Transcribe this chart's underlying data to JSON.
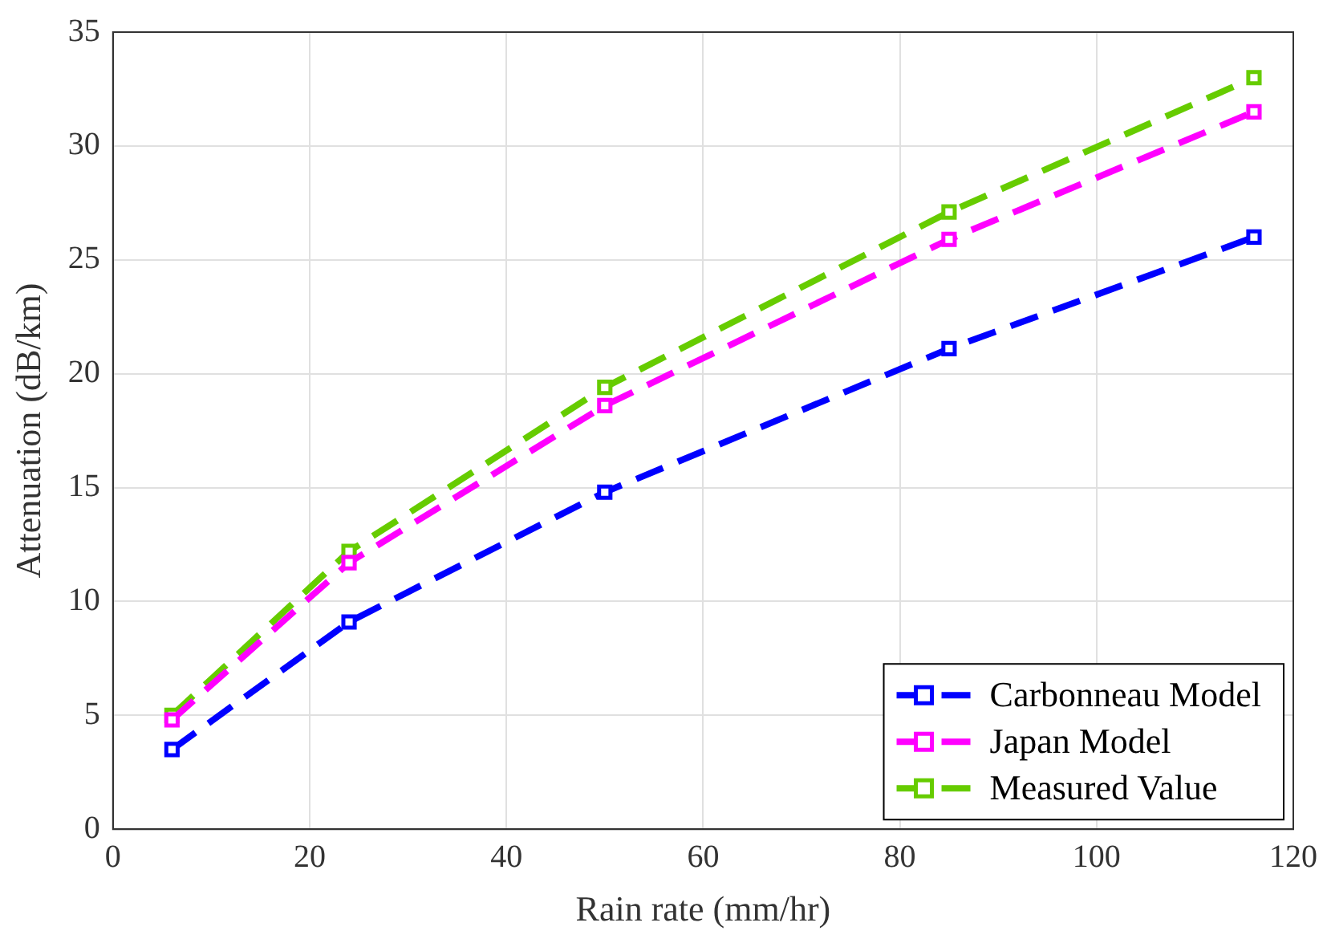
{
  "chart_data": {
    "type": "line",
    "xlabel": "Rain rate (mm/hr)",
    "ylabel": "Attenuation (dB/km)",
    "x": [
      6,
      24,
      50,
      85,
      116
    ],
    "series": [
      {
        "name": "Carbonneau Model",
        "color": "#0000ff",
        "values": [
          3.5,
          9.1,
          14.8,
          21.1,
          26.0
        ]
      },
      {
        "name": "Japan Model",
        "color": "#ff00ff",
        "values": [
          4.8,
          11.7,
          18.6,
          25.9,
          31.5
        ]
      },
      {
        "name": "Measured Value",
        "color": "#66cc00",
        "values": [
          5.0,
          12.2,
          19.4,
          27.1,
          33.0
        ]
      }
    ],
    "xlim": [
      0,
      120
    ],
    "xticks": [
      0,
      20,
      40,
      60,
      80,
      100,
      120
    ],
    "ylim": [
      0,
      35
    ],
    "yticks": [
      0,
      5,
      10,
      15,
      20,
      25,
      30,
      35
    ],
    "grid": true,
    "legend": "bottom right",
    "marker": "square",
    "line_style": "dashed"
  }
}
